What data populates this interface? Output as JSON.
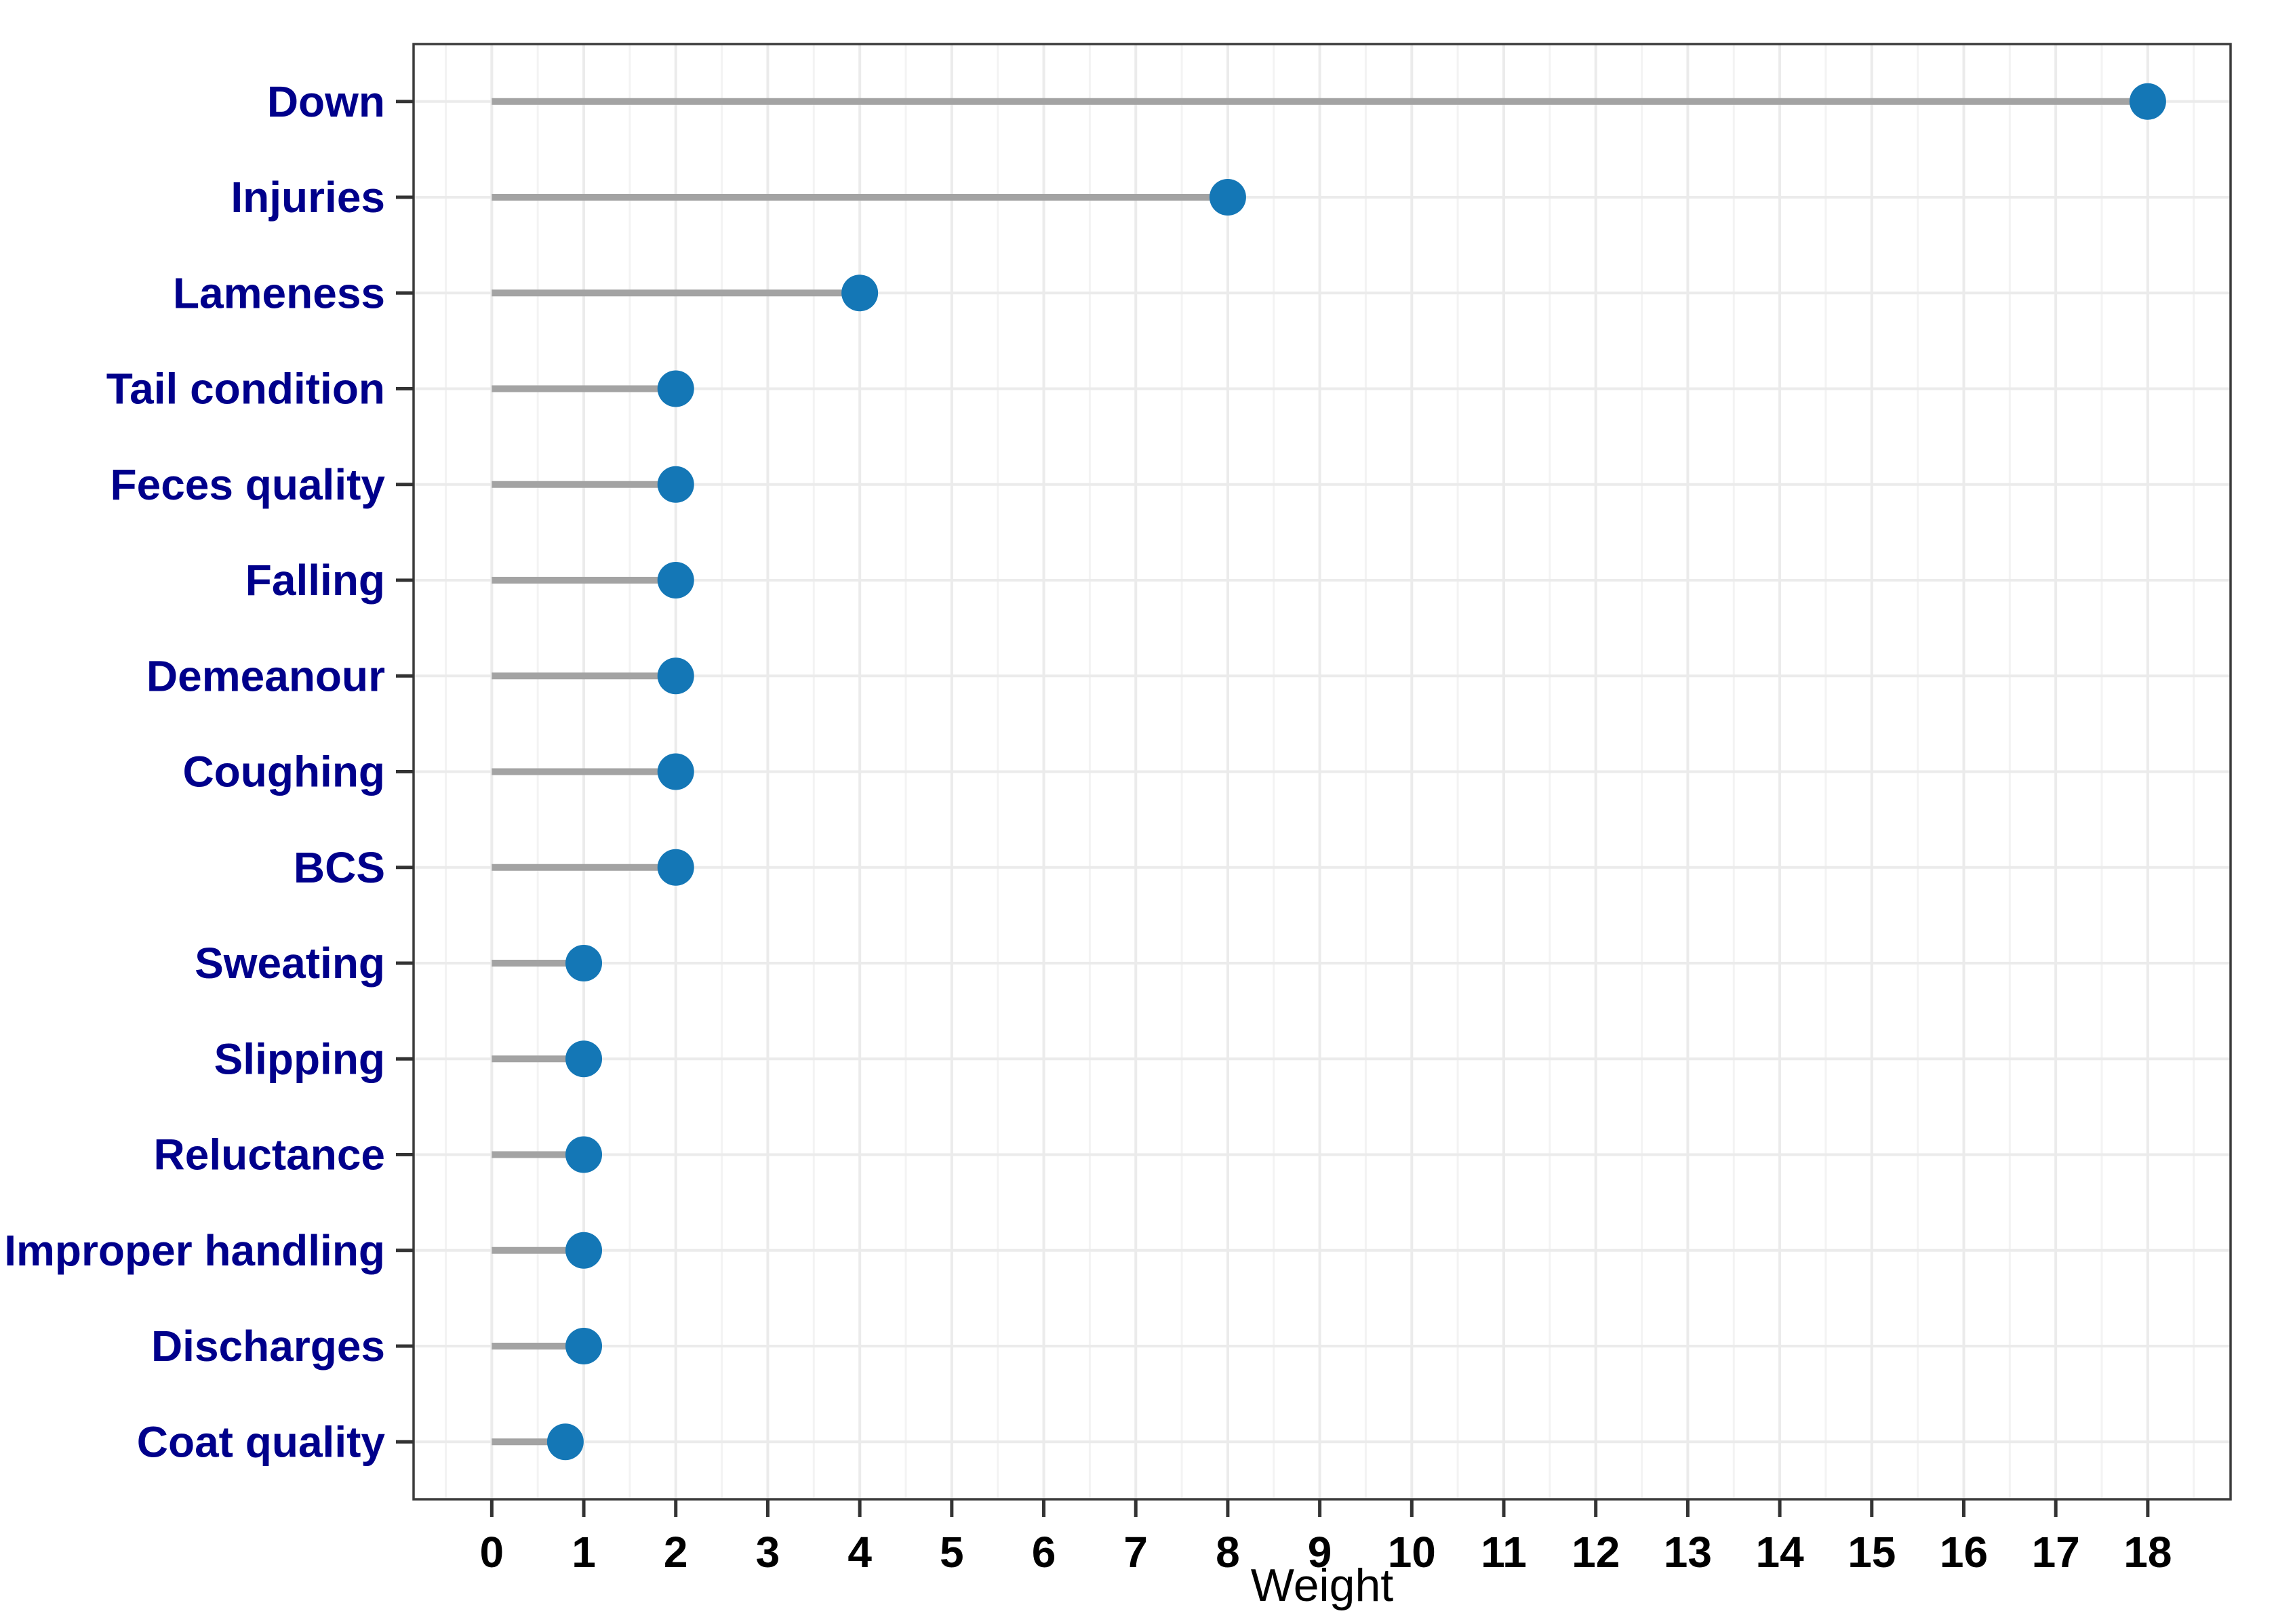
{
  "chart_data": {
    "type": "scatter",
    "style": "lollipop",
    "title": "",
    "xlabel": "Weight",
    "ylabel": "",
    "categories": [
      "Down",
      "Injuries",
      "Lameness",
      "Tail condition",
      "Feces quality",
      "Falling",
      "Demeanour",
      "Coughing",
      "BCS",
      "Sweating",
      "Slipping",
      "Reluctance",
      "Improper handling",
      "Discharges",
      "Coat quality"
    ],
    "values": [
      18,
      8,
      4,
      2,
      2,
      2,
      2,
      2,
      2,
      1,
      1,
      1,
      1,
      1,
      0.8
    ],
    "x_ticks": [
      0,
      1,
      2,
      3,
      4,
      5,
      6,
      7,
      8,
      9,
      10,
      11,
      12,
      13,
      14,
      15,
      16,
      17,
      18
    ],
    "xlim": [
      -0.85,
      18.9
    ],
    "stem_origin": 0,
    "grid": {
      "vertical_major": true,
      "vertical_minor_step": 0.5,
      "horizontal_major_on_rows": true,
      "horizontal_minor": false
    },
    "legend": "none",
    "colors": {
      "dot": "#1477b6",
      "stem": "#a3a3a3",
      "category_label": "#00008B",
      "tick_label": "#000000",
      "axis_title": "#000000",
      "grid_major": "#ebebeb",
      "grid_minor": "#f3f3f3",
      "panel_border": "#3c3c3c",
      "tick_mark": "#333333",
      "background": "#ffffff"
    }
  }
}
